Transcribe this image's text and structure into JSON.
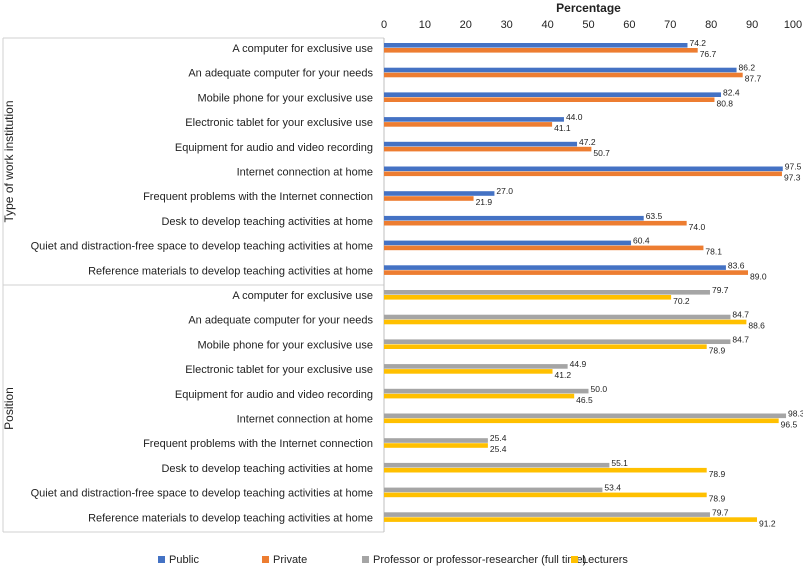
{
  "chart_data": {
    "type": "bar",
    "orientation": "horizontal",
    "title": "Percentage",
    "xlabel": "Percentage",
    "xlim": [
      0,
      100
    ],
    "xticks": [
      0,
      10,
      20,
      30,
      40,
      50,
      60,
      70,
      80,
      90,
      100
    ],
    "grid": false,
    "legend_position": "bottom",
    "colors": {
      "Public": "#4472C4",
      "Private": "#ED7D31",
      "Professor or professor-researcher (full time)": "#A5A5A5",
      "Lecturers": "#FFC000"
    },
    "groups": [
      {
        "name": "Type of work institution",
        "categories": [
          "A computer for exclusive use",
          "An adequate  computer for your needs",
          "Mobile phone for your exclusive use",
          "Electronic tablet for your exclusive use",
          "Equipment for audio and video recording",
          "Internet connection at home",
          "Frequent problems with the Internet connection",
          "Desk to develop teaching activities at home",
          "Quiet and distraction-free space to develop teaching activities at home",
          "Reference materials to develop teaching activities at home"
        ],
        "series": [
          {
            "name": "Public",
            "values": [
              74.2,
              86.2,
              82.4,
              44.0,
              47.2,
              97.5,
              27.0,
              63.5,
              60.4,
              83.6
            ]
          },
          {
            "name": "Private",
            "values": [
              76.7,
              87.7,
              80.8,
              41.1,
              50.7,
              97.3,
              21.9,
              74.0,
              78.1,
              89.0
            ]
          }
        ]
      },
      {
        "name": "Position",
        "categories": [
          "A computer for exclusive use",
          "An adequate  computer for your needs",
          "Mobile phone for your exclusive use",
          "Electronic tablet for your exclusive use",
          "Equipment for audio and video recording",
          "Internet connection at home",
          "Frequent problems with the Internet connection",
          "Desk to develop teaching activities at home",
          "Quiet and distraction-free space to develop teaching activities at home",
          "Reference materials to develop teaching activities at home"
        ],
        "series": [
          {
            "name": "Professor or professor-researcher (full time)",
            "values": [
              79.7,
              84.7,
              84.7,
              44.9,
              50.0,
              98.3,
              25.4,
              55.1,
              53.4,
              79.7
            ]
          },
          {
            "name": "Lecturers",
            "values": [
              70.2,
              88.6,
              78.9,
              41.2,
              46.5,
              96.5,
              25.4,
              78.9,
              78.9,
              91.2
            ]
          }
        ]
      }
    ],
    "legend": [
      "Public",
      "Private",
      "Professor or professor-researcher (full time)",
      "Lecturers"
    ]
  }
}
